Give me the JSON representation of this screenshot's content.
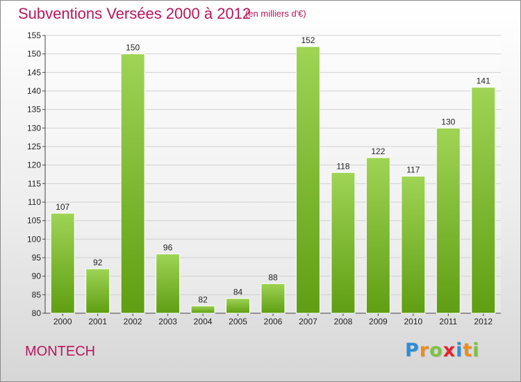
{
  "header": {
    "title": "Subventions Versées 2000 à 2012",
    "subtitle": "(en milliers d'€)"
  },
  "footer": {
    "commune": "MONTECH",
    "logo": {
      "letters": [
        "P",
        "r",
        "o",
        "x",
        "i",
        "t",
        "i"
      ],
      "colors": [
        "#2a8fd6",
        "#f08a1c",
        "#7dc142",
        "#e2252b",
        "#2a8fd6",
        "#f08a1c",
        "#7dc142"
      ]
    }
  },
  "colors": {
    "title": "#b5175c",
    "bar_light": "#9fd455",
    "bar_dark": "#5f9e12"
  },
  "chart_data": {
    "type": "bar",
    "categories": [
      "2000",
      "2001",
      "2002",
      "2003",
      "2004",
      "2005",
      "2006",
      "2007",
      "2008",
      "2009",
      "2010",
      "2011",
      "2012"
    ],
    "values": [
      107,
      92,
      150,
      96,
      82,
      84,
      88,
      152,
      118,
      122,
      117,
      130,
      141
    ],
    "title": "Subventions Versées 2000 à 2012",
    "subtitle": "(en milliers d'€)",
    "xlabel": "",
    "ylabel": "",
    "ylim": [
      80,
      155
    ],
    "yticks": [
      80,
      85,
      90,
      95,
      100,
      105,
      110,
      115,
      120,
      125,
      130,
      135,
      140,
      145,
      150,
      155
    ],
    "grid": true,
    "legend": "none"
  }
}
